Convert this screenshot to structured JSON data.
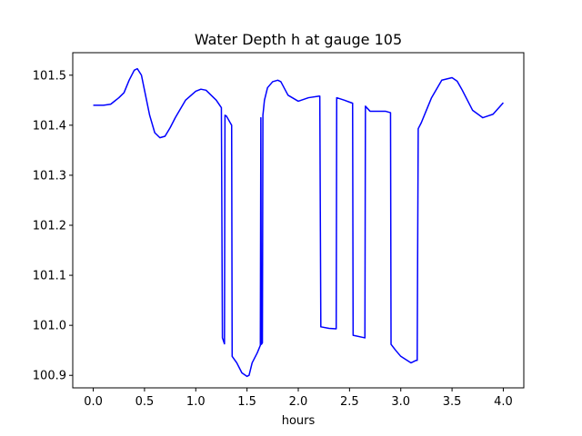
{
  "chart_data": {
    "type": "line",
    "title": "Water Depth h at gauge 105",
    "xlabel": "hours",
    "ylabel": "",
    "xlim": [
      -0.2,
      4.2
    ],
    "ylim": [
      100.875,
      101.545
    ],
    "x_ticks": [
      "0.0",
      "0.5",
      "1.0",
      "1.5",
      "2.0",
      "2.5",
      "3.0",
      "3.5",
      "4.0"
    ],
    "y_ticks": [
      "100.9",
      "101.0",
      "101.1",
      "101.2",
      "101.3",
      "101.4",
      "101.5"
    ],
    "grid": false,
    "line_color": "#0000ff",
    "series": [
      {
        "x": [
          0.0,
          0.1,
          0.17,
          0.25,
          0.3,
          0.35,
          0.4,
          0.43,
          0.47,
          0.5,
          0.55,
          0.6,
          0.65,
          0.7,
          0.75,
          0.8,
          0.9,
          1.0,
          1.05,
          1.1,
          1.15,
          1.2,
          1.25,
          1.26,
          1.28,
          1.285,
          1.3,
          1.35,
          1.355,
          1.4,
          1.45,
          1.5,
          1.52,
          1.55,
          1.6,
          1.63,
          1.635,
          1.64,
          1.65,
          1.655,
          1.66,
          1.67,
          1.7,
          1.75,
          1.8,
          1.83,
          1.9,
          2.0,
          2.1,
          2.2,
          2.21,
          2.22,
          2.3,
          2.37,
          2.375,
          2.45,
          2.53,
          2.535,
          2.65,
          2.655,
          2.7,
          2.8,
          2.85,
          2.9,
          2.905,
          2.95,
          3.0,
          3.1,
          3.15,
          3.16,
          3.17,
          3.2,
          3.25,
          3.3,
          3.4,
          3.5,
          3.55,
          3.6,
          3.7,
          3.8,
          3.9,
          4.0
        ],
        "y": [
          101.44,
          101.44,
          101.442,
          101.455,
          101.465,
          101.49,
          101.51,
          101.513,
          101.5,
          101.47,
          101.42,
          101.385,
          101.375,
          101.378,
          101.395,
          101.415,
          101.45,
          101.468,
          101.472,
          101.47,
          101.46,
          101.45,
          101.435,
          100.975,
          100.963,
          101.42,
          101.418,
          101.4,
          100.938,
          100.925,
          100.905,
          100.898,
          100.9,
          100.925,
          100.945,
          100.96,
          101.415,
          100.962,
          100.965,
          101.42,
          101.43,
          101.45,
          101.475,
          101.487,
          101.49,
          101.487,
          101.46,
          101.448,
          101.455,
          101.458,
          101.458,
          100.997,
          100.994,
          100.993,
          101.455,
          101.45,
          101.444,
          100.98,
          100.975,
          101.438,
          101.428,
          101.428,
          101.428,
          101.425,
          100.962,
          100.95,
          100.938,
          100.925,
          100.93,
          100.93,
          101.393,
          101.405,
          101.43,
          101.455,
          101.49,
          101.495,
          101.488,
          101.47,
          101.43,
          101.415,
          101.422,
          101.445
        ]
      }
    ]
  }
}
